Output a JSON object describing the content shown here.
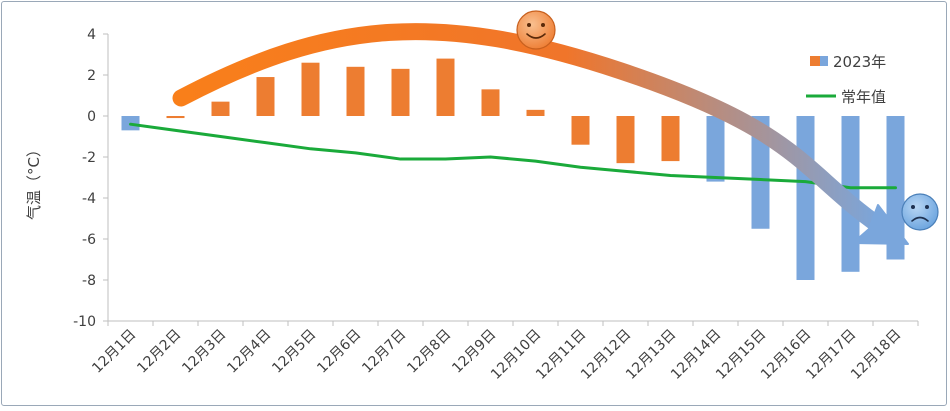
{
  "chart_data": {
    "type": "bar",
    "title": "",
    "xlabel": "",
    "ylabel": "气温（°C）",
    "ylim": [
      -10,
      4
    ],
    "yticks": [
      4,
      2,
      0,
      -2,
      -4,
      -6,
      -8,
      -10
    ],
    "grid": false,
    "legend_position": "top-right",
    "categories": [
      "12月1日",
      "12月2日",
      "12月3日",
      "12月4日",
      "12月5日",
      "12月6日",
      "12月7日",
      "12月8日",
      "12月9日",
      "12月10日",
      "12月11日",
      "12月12日",
      "12月13日",
      "12月14日",
      "12月15日",
      "12月16日",
      "12月17日",
      "12月18日"
    ],
    "series": [
      {
        "name": "2023年",
        "type": "bar",
        "values": [
          -0.7,
          -0.1,
          0.7,
          1.9,
          2.6,
          2.4,
          2.3,
          2.8,
          1.3,
          0.3,
          -1.4,
          -2.3,
          -2.2,
          -3.2,
          -5.5,
          -8.0,
          -7.6,
          -7.0
        ],
        "bar_colors": [
          "#7aa6dc",
          "#ed7d31",
          "#ed7d31",
          "#ed7d31",
          "#ed7d31",
          "#ed7d31",
          "#ed7d31",
          "#ed7d31",
          "#ed7d31",
          "#ed7d31",
          "#ed7d31",
          "#ed7d31",
          "#ed7d31",
          "#7aa6dc",
          "#7aa6dc",
          "#7aa6dc",
          "#7aa6dc",
          "#7aa6dc"
        ]
      },
      {
        "name": "常年值",
        "type": "line",
        "color": "#1aaa3a",
        "values": [
          -0.4,
          -0.7,
          -1.0,
          -1.3,
          -1.6,
          -1.8,
          -2.1,
          -2.1,
          -2.0,
          -2.2,
          -2.5,
          -2.7,
          -2.9,
          -3.0,
          -3.1,
          -3.2,
          -3.5,
          -3.5
        ]
      }
    ],
    "legend": [
      {
        "label": "2023年",
        "color": "#ed7d31"
      },
      {
        "label": "常年值",
        "color": "#1aaa3a"
      }
    ],
    "annotations": [
      {
        "kind": "trend-arrow",
        "from_color": "#f97f1a",
        "to_color": "#7aa6dc"
      },
      {
        "kind": "happy-face-icon",
        "color": "#f4a05a"
      },
      {
        "kind": "sad-face-icon",
        "color": "#7fb2e5"
      }
    ]
  }
}
